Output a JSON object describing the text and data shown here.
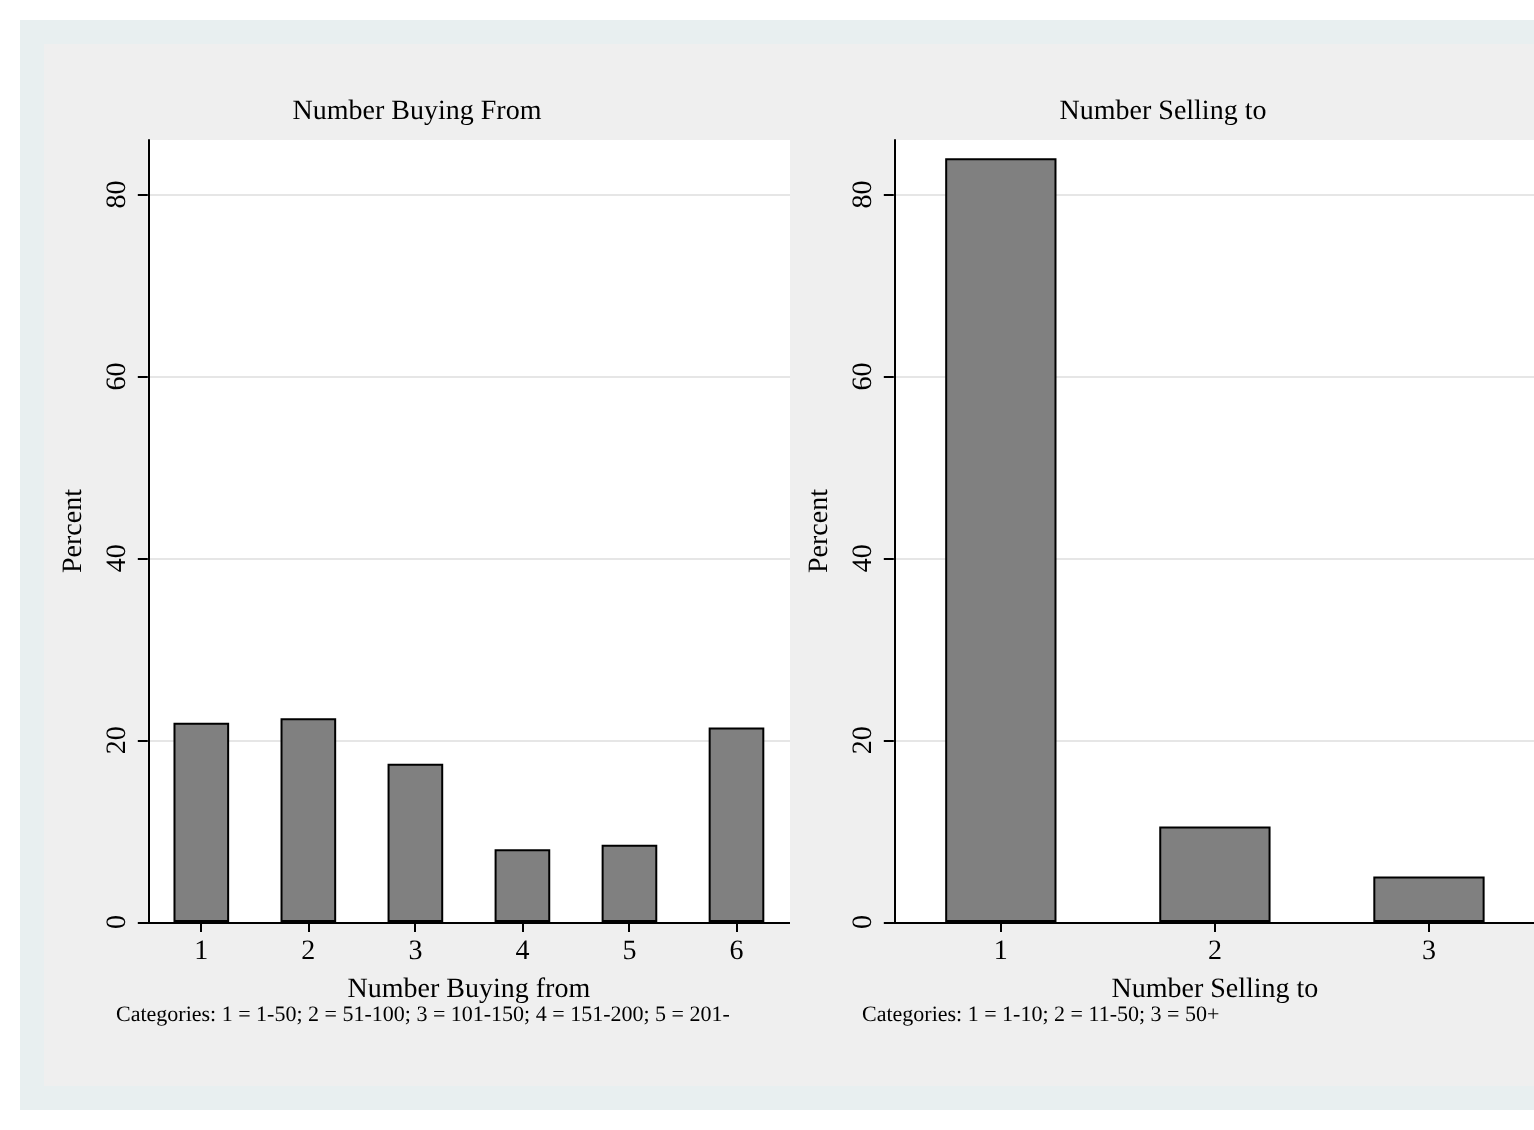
{
  "chart_data": [
    {
      "type": "bar",
      "title": "Number Buying From",
      "xlabel": "Number Buying from",
      "ylabel": "Percent",
      "categories": [
        "1",
        "2",
        "3",
        "4",
        "5",
        "6"
      ],
      "values": [
        21.9,
        22.4,
        17.4,
        8.0,
        8.5,
        21.4
      ],
      "color": "#808080",
      "ylim": [
        0,
        86
      ],
      "yticks": [
        0,
        20,
        40,
        60,
        80
      ],
      "grid": "y",
      "annotations": [
        "Categories: 1 = 1-50; 2 = 51-100; 3 = 101-150; 4 = 151-200; 5 = 201-"
      ]
    },
    {
      "type": "bar",
      "title": "Number Selling to",
      "xlabel": "Number Selling to",
      "ylabel": "Percent",
      "categories": [
        "1",
        "2",
        "3"
      ],
      "values": [
        84.0,
        10.5,
        5.0
      ],
      "color": "#808080",
      "ylim": [
        0,
        86
      ],
      "yticks": [
        0,
        20,
        40,
        60,
        80
      ],
      "grid": "y",
      "annotations": [
        "Categories: 1 = 1-10; 2 = 11-50; 3 = 50+"
      ]
    }
  ]
}
